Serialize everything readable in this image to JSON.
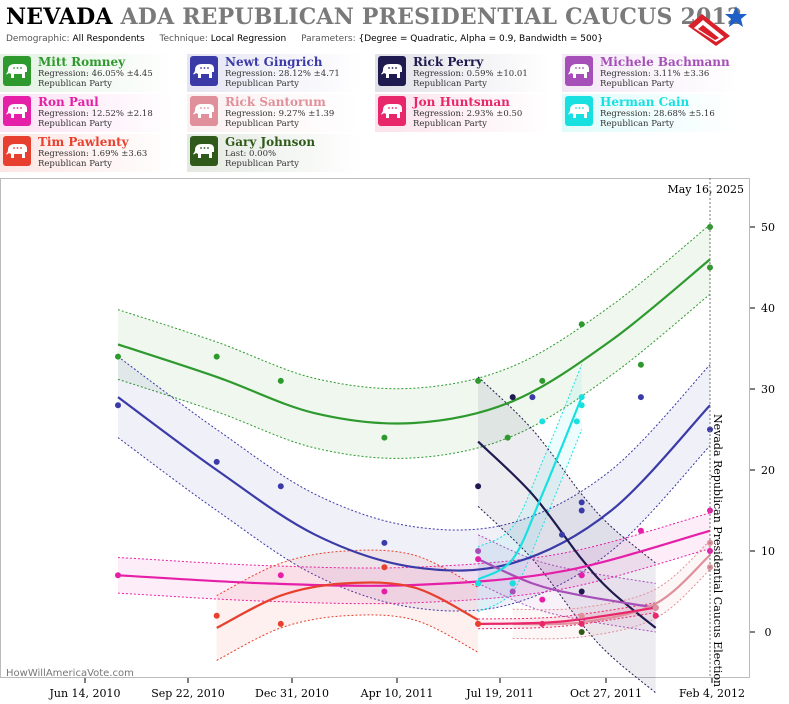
{
  "header": {
    "state": "NEVADA",
    "rest": "ADA REPUBLICAN PRESIDENTIAL CAUCUS 2012",
    "demographic_label": "Demographic:",
    "demographic_value": "All Respondents",
    "technique_label": "Technique:",
    "technique_value": "Local Regression",
    "parameters_label": "Parameters:",
    "parameters_value": "{Degree = Quadratic, Alpha = 0.9, Bandwidth = 500}"
  },
  "candidates": [
    {
      "name": "Mitt Romney",
      "stat": "Regression: 46.05% ±4.45",
      "party": "Republican Party",
      "color": "#2e9a2e"
    },
    {
      "name": "Newt Gingrich",
      "stat": "Regression: 28.12% ±4.71",
      "party": "Republican Party",
      "color": "#3b3ba8"
    },
    {
      "name": "Rick Perry",
      "stat": "Regression: 0.59% ±10.01",
      "party": "Republican Party",
      "color": "#1f1a4f"
    },
    {
      "name": "Michele Bachmann",
      "stat": "Regression: 3.11% ±3.36",
      "party": "Republican Party",
      "color": "#a64fb8"
    },
    {
      "name": "Ron Paul",
      "stat": "Regression: 12.52% ±2.18",
      "party": "Republican Party",
      "color": "#e61fa8"
    },
    {
      "name": "Rick Santorum",
      "stat": "Regression: 9.27% ±1.39",
      "party": "Republican Party",
      "color": "#e0909a"
    },
    {
      "name": "Jon Huntsman",
      "stat": "Regression: 2.93% ±0.50",
      "party": "Republican Party",
      "color": "#e8276b"
    },
    {
      "name": "Herman Cain",
      "stat": "Regression: 28.68% ±5.16",
      "party": "Republican Party",
      "color": "#19e0e0"
    },
    {
      "name": "Tim Pawlenty",
      "stat": "Regression: 1.69% ±3.63",
      "party": "Republican Party",
      "color": "#e8402e"
    },
    {
      "name": "Gary Johnson",
      "stat": "Last: 0.00%",
      "party": "Republican Party",
      "color": "#2f5a1a"
    }
  ],
  "chart_data": {
    "type": "scatter",
    "current_date_label": "May 16, 2025",
    "event_label": "Nevada Republican Presidential Caucus Election",
    "watermark": "HowWillAmericaVote.com",
    "x_ticks": [
      "Jun 14, 2010",
      "Sep 22, 2010",
      "Dec 31, 2010",
      "Apr 10, 2011",
      "Jul 19, 2011",
      "Oct 27, 2011",
      "Feb 4, 2012"
    ],
    "y_ticks": [
      0,
      10,
      20,
      30,
      40,
      50
    ],
    "ylim": [
      -7,
      57
    ],
    "x_range_days": [
      -5,
      602
    ],
    "event_day": 600,
    "series": [
      {
        "name": "Mitt Romney",
        "points": [
          [
            0,
            34
          ],
          [
            100,
            34
          ],
          [
            165,
            31
          ],
          [
            270,
            24
          ],
          [
            365,
            31
          ],
          [
            395,
            24
          ],
          [
            430,
            31
          ],
          [
            470,
            38
          ],
          [
            530,
            33
          ],
          [
            600,
            50
          ],
          [
            600,
            45
          ]
        ],
        "trend": [
          [
            0,
            35.5
          ],
          [
            100,
            31.5
          ],
          [
            200,
            27
          ],
          [
            300,
            25.8
          ],
          [
            400,
            28.5
          ],
          [
            500,
            36
          ],
          [
            600,
            46
          ]
        ],
        "band": 4.3
      },
      {
        "name": "Newt Gingrich",
        "points": [
          [
            0,
            28
          ],
          [
            100,
            21
          ],
          [
            165,
            18
          ],
          [
            270,
            11
          ],
          [
            365,
            6
          ],
          [
            420,
            29
          ],
          [
            450,
            12
          ],
          [
            470,
            16
          ],
          [
            470,
            15
          ],
          [
            530,
            29
          ],
          [
            600,
            25
          ]
        ],
        "trend": [
          [
            0,
            29
          ],
          [
            100,
            20
          ],
          [
            200,
            12
          ],
          [
            300,
            8
          ],
          [
            400,
            8.5
          ],
          [
            500,
            15
          ],
          [
            600,
            28
          ]
        ],
        "band": 5
      },
      {
        "name": "Rick Perry",
        "points": [
          [
            365,
            18
          ],
          [
            400,
            29
          ],
          [
            470,
            5
          ],
          [
            545,
            3
          ]
        ],
        "trend": [
          [
            365,
            23.5
          ],
          [
            420,
            17
          ],
          [
            470,
            9
          ],
          [
            500,
            5
          ],
          [
            545,
            0.5
          ]
        ],
        "band": 8
      },
      {
        "name": "Michele Bachmann",
        "points": [
          [
            365,
            10
          ],
          [
            400,
            5
          ],
          [
            470,
            7
          ],
          [
            545,
            3
          ]
        ],
        "trend": [
          [
            365,
            9
          ],
          [
            420,
            6
          ],
          [
            470,
            4.5
          ],
          [
            545,
            3
          ]
        ],
        "band": 3
      },
      {
        "name": "Ron Paul",
        "points": [
          [
            0,
            7
          ],
          [
            165,
            7
          ],
          [
            270,
            5
          ],
          [
            365,
            9
          ],
          [
            400,
            6
          ],
          [
            430,
            4
          ],
          [
            470,
            7
          ],
          [
            530,
            12.5
          ],
          [
            600,
            15
          ],
          [
            600,
            10
          ]
        ],
        "trend": [
          [
            0,
            7
          ],
          [
            150,
            6
          ],
          [
            300,
            5.8
          ],
          [
            450,
            7.5
          ],
          [
            600,
            12.5
          ]
        ],
        "band": 2.2
      },
      {
        "name": "Rick Santorum",
        "points": [
          [
            430,
            1
          ],
          [
            470,
            2
          ],
          [
            545,
            3
          ],
          [
            600,
            8
          ],
          [
            600,
            11
          ]
        ],
        "trend": [
          [
            400,
            1
          ],
          [
            470,
            1.2
          ],
          [
            545,
            3.5
          ],
          [
            600,
            9.5
          ]
        ],
        "band": 1.8
      },
      {
        "name": "Jon Huntsman",
        "points": [
          [
            365,
            1
          ],
          [
            430,
            1
          ],
          [
            470,
            1
          ],
          [
            545,
            2
          ]
        ],
        "trend": [
          [
            365,
            1
          ],
          [
            450,
            1.3
          ],
          [
            545,
            3
          ]
        ],
        "band": 0.6
      },
      {
        "name": "Herman Cain",
        "points": [
          [
            365,
            6
          ],
          [
            400,
            6
          ],
          [
            430,
            26
          ],
          [
            465,
            26
          ],
          [
            470,
            28
          ],
          [
            470,
            29
          ]
        ],
        "trend": [
          [
            365,
            6.5
          ],
          [
            400,
            9
          ],
          [
            430,
            17
          ],
          [
            470,
            29
          ]
        ],
        "band": 4
      },
      {
        "name": "Tim Pawlenty",
        "points": [
          [
            100,
            2
          ],
          [
            165,
            1
          ],
          [
            270,
            8
          ],
          [
            365,
            1
          ]
        ],
        "trend": [
          [
            100,
            0.5
          ],
          [
            165,
            4.5
          ],
          [
            230,
            6
          ],
          [
            300,
            5.5
          ],
          [
            365,
            1.5
          ]
        ],
        "band": 4
      },
      {
        "name": "Gary Johnson",
        "points": [
          [
            470,
            0
          ]
        ],
        "trend": [],
        "band": 0
      }
    ]
  }
}
